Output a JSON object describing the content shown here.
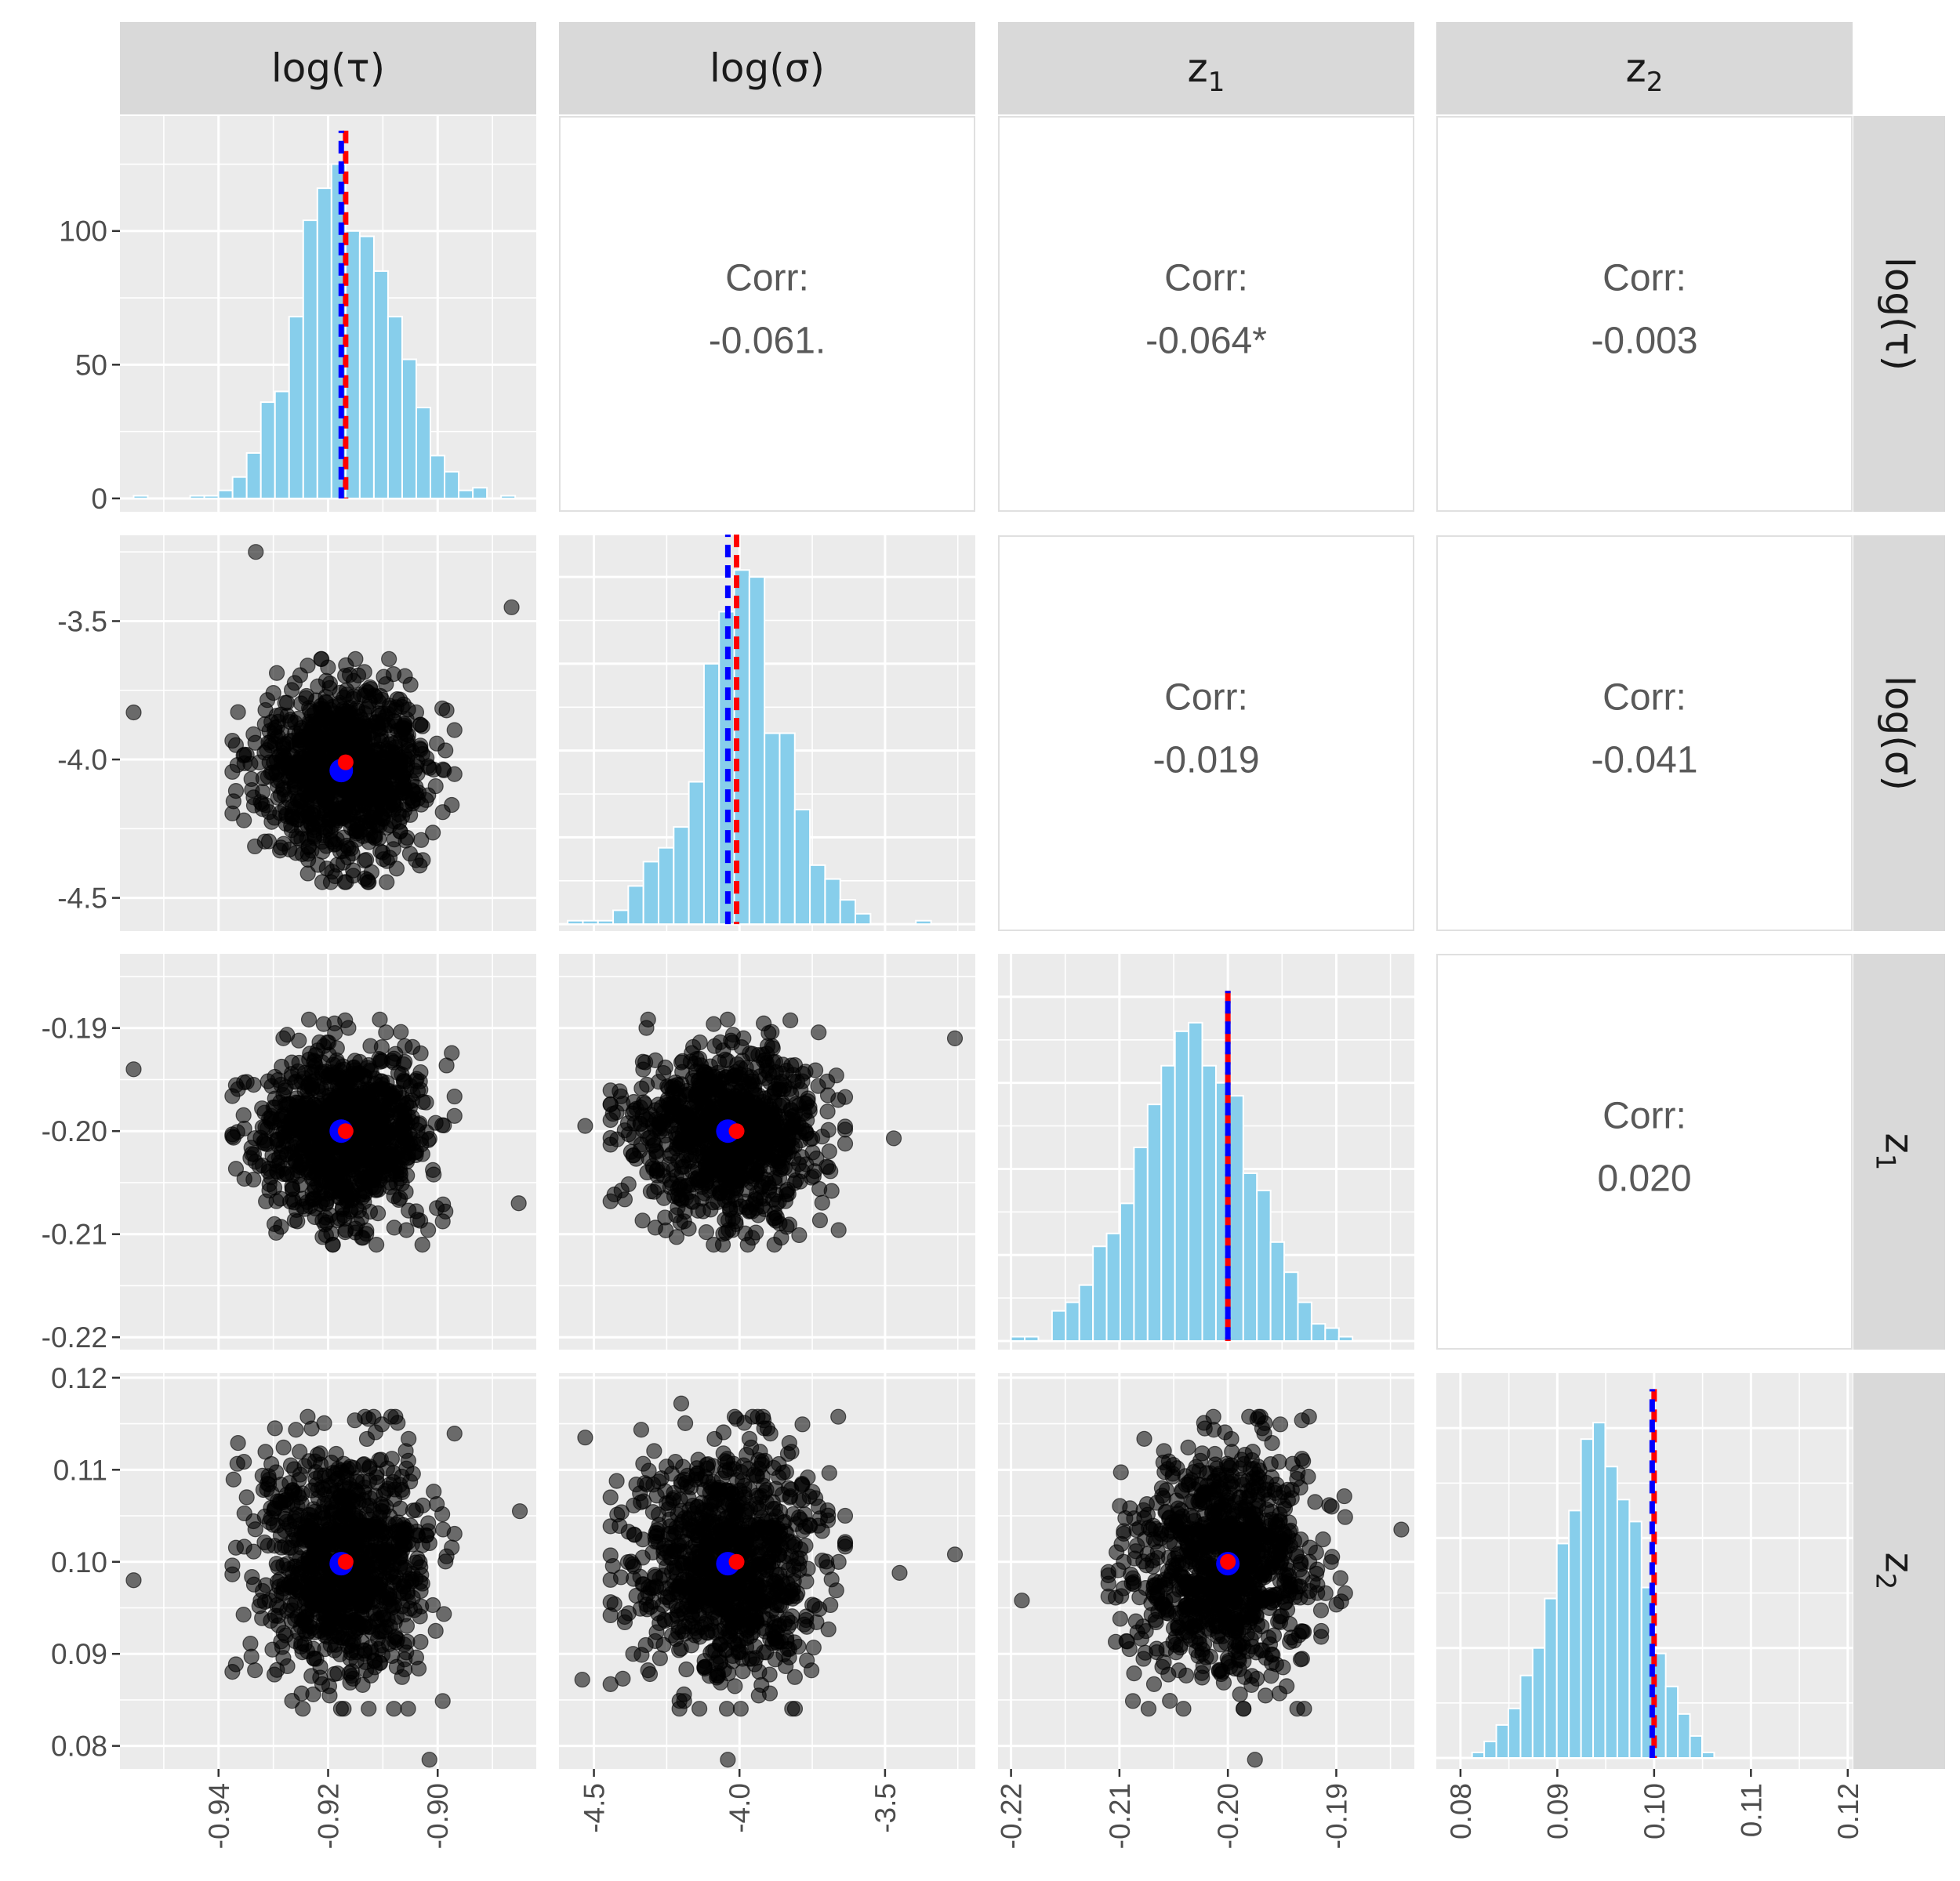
{
  "chart_data": {
    "type": "scatter-matrix",
    "variables": [
      {
        "label": "log(τ)",
        "display": {
          "main": "log(τ)",
          "sub": ""
        },
        "lim": [
          -0.958,
          -0.882
        ],
        "ticks": [
          -0.94,
          -0.92,
          -0.9
        ],
        "tick_labels": [
          "-0.94",
          "-0.92",
          "-0.90"
        ],
        "center": -0.9172,
        "sd": 0.0078,
        "true_value": -0.9168,
        "mean_estimate": -0.9176,
        "outliers": [
          [
            -0.9332,
            -3.25
          ],
          [
            -0.8865,
            -3.45
          ],
          [
            -0.9555,
            -3.83
          ],
          [
            -0.9555,
            -0.194
          ],
          [
            -0.9555,
            0.098
          ],
          [
            -0.885,
            0.1055
          ],
          [
            -0.8852,
            -0.207
          ]
        ]
      },
      {
        "label": "log(σ)",
        "display": {
          "main": "log(σ)",
          "sub": ""
        },
        "lim": [
          -4.62,
          -3.19
        ],
        "ticks": [
          -4.5,
          -4.0,
          -3.5
        ],
        "tick_labels": [
          "-4.5",
          "-4.0",
          "-3.5"
        ],
        "center": -4.04,
        "sd": 0.155,
        "true_value": -4.01,
        "mean_estimate": -4.04,
        "outliers": [
          [
            -3.26,
            -0.191
          ],
          [
            -3.26,
            0.1008
          ],
          [
            -3.45,
            0.0988
          ],
          [
            -3.47,
            -0.2007
          ],
          [
            -4.53,
            -0.1995
          ],
          [
            -4.53,
            0.1135
          ],
          [
            -4.54,
            0.0872
          ]
        ]
      },
      {
        "label": "z1",
        "display": {
          "main": "z",
          "sub": "1"
        },
        "lim": [
          -0.2212,
          -0.1828
        ],
        "ticks": [
          -0.22,
          -0.21,
          -0.2,
          -0.19
        ],
        "tick_labels": [
          "-0.22",
          "-0.21",
          "-0.20",
          "-0.19"
        ],
        "center": -0.2001,
        "sd": 0.0042,
        "true_value": -0.2,
        "mean_estimate": -0.2,
        "outliers": [
          [
            -0.219,
            0.0958
          ],
          [
            -0.184,
            0.1035
          ],
          [
            -0.1975,
            0.0785
          ]
        ]
      },
      {
        "label": "z2",
        "display": {
          "main": "z",
          "sub": "2"
        },
        "lim": [
          0.0775,
          0.1205
        ],
        "ticks": [
          0.08,
          0.09,
          0.1,
          0.11,
          0.12
        ],
        "tick_labels": [
          "0.08",
          "0.09",
          "0.10",
          "0.11",
          "0.12"
        ],
        "center": 0.0999,
        "sd": 0.0061,
        "true_value": 0.1,
        "mean_estimate": 0.0998,
        "outliers": [
          [
            -0.9015,
            0.0785
          ],
          [
            -4.04,
            0.0785
          ],
          [
            -4.2,
            0.1172
          ]
        ]
      }
    ],
    "diagonal": {
      "type": "histogram",
      "bar_color": "#87CEEB",
      "true_value_line_color": "#FF0000",
      "mean_line_color": "#0000FF",
      "hists": [
        {
          "breaks_start": -0.9555,
          "binwidth": 0.00258,
          "counts": [
            1,
            0,
            0,
            0,
            1,
            1,
            3,
            8,
            17,
            36,
            40,
            68,
            104,
            116,
            125,
            100,
            98,
            85,
            68,
            52,
            34,
            16,
            10,
            3,
            4,
            0,
            1,
            0
          ],
          "ylim": [
            -5,
            143
          ],
          "yticks": [
            0,
            50,
            100
          ],
          "ytick_labels": [
            "0",
            "50",
            "100"
          ]
        },
        {
          "breaks_start": -4.59,
          "binwidth": 0.052,
          "counts": [
            1,
            1,
            1,
            4,
            11,
            18,
            22,
            28,
            41,
            75,
            90,
            102,
            100,
            55,
            55,
            33,
            17,
            13,
            7,
            3,
            0,
            0,
            0,
            1,
            0,
            0
          ],
          "ylim": [
            -2,
            112
          ]
        },
        {
          "breaks_start": -0.22,
          "binwidth": 0.00126,
          "counts": [
            1,
            1,
            0,
            7,
            9,
            13,
            22,
            25,
            32,
            45,
            55,
            64,
            72,
            74,
            64,
            60,
            57,
            39,
            35,
            23,
            16,
            9,
            4,
            3,
            1,
            0
          ],
          "ylim": [
            -2,
            90
          ]
        },
        {
          "breaks_start": 0.0787,
          "binwidth": 0.00125,
          "counts": [
            0,
            0,
            1,
            3,
            6,
            9,
            15,
            20,
            29,
            39,
            45,
            58,
            61,
            53,
            47,
            43,
            31,
            19,
            13,
            8,
            4,
            1
          ],
          "ylim": [
            -2,
            70
          ]
        }
      ]
    },
    "upper": {
      "corr_label": "Corr:",
      "cells": [
        {
          "row": 0,
          "col": 1,
          "text": "-0.061."
        },
        {
          "row": 0,
          "col": 2,
          "text": "-0.064*"
        },
        {
          "row": 0,
          "col": 3,
          "text": "-0.003"
        },
        {
          "row": 1,
          "col": 2,
          "text": "-0.019"
        },
        {
          "row": 1,
          "col": 3,
          "text": "-0.041"
        },
        {
          "row": 2,
          "col": 3,
          "text": "0.020"
        }
      ]
    },
    "lower": {
      "type": "scatter",
      "n_points": 1000,
      "point_color": "#000000",
      "point_alpha": 0.55,
      "true_value_marker_color": "#FF0000",
      "mean_marker_color": "#0000FF"
    },
    "colors": {
      "panel_background": "#EBEBEB",
      "grid": "#FFFFFF",
      "strip_background": "#D9D9D9",
      "upper_panel_border": "#E0E0E0"
    }
  }
}
